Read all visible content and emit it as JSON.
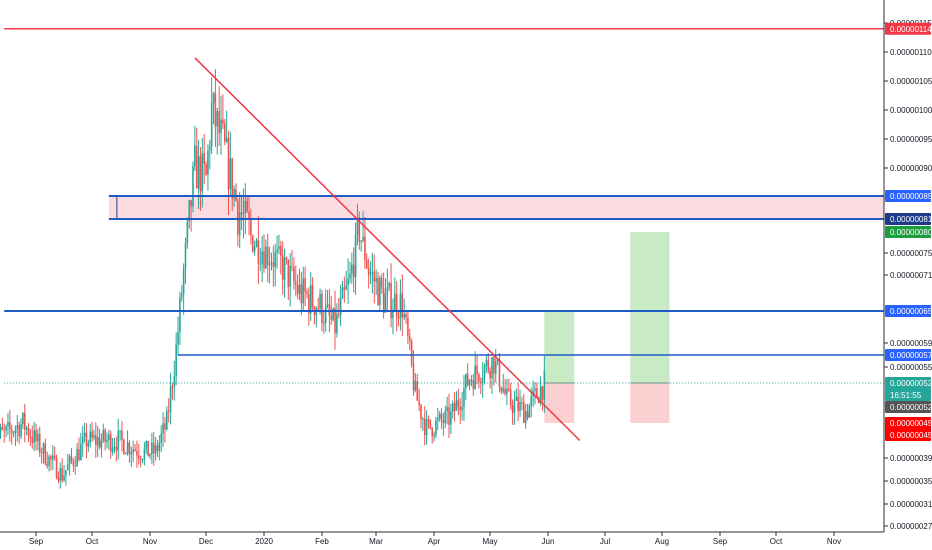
{
  "chart_data": {
    "type": "candlestick",
    "title": "",
    "xlabel": "",
    "ylabel": "",
    "colors": {
      "up": "#26a69a",
      "down": "#ef5350",
      "trendline": "#f23645",
      "hline_red": "#f23645",
      "hline_blue": "#1e5bc6",
      "zone_fill": "#fadbe0",
      "target_zone": "#c8ebc5",
      "stop_zone": "#fcd0d0"
    },
    "y_axis": {
      "position": "right",
      "ylim": [
        2.5e-07,
        1.17e-06
      ],
      "ticks": [
        "0.00000115",
        "0.00000110",
        "0.00000105",
        "0.00000100",
        "0.00000095",
        "0.00000090",
        "0.00000075",
        "0.00000071",
        "0.00000059",
        "0.00000055",
        "0.00000039",
        "0.00000035",
        "0.00000031",
        "0.00000027"
      ]
    },
    "x_axis": {
      "ticks": [
        "Sep",
        "Oct",
        "Nov",
        "Dec",
        "2020",
        "Feb",
        "Mar",
        "Apr",
        "May",
        "Jun",
        "Jul",
        "Aug",
        "Sep",
        "Oct",
        "Nov"
      ]
    },
    "horizontal_lines": [
      {
        "value": 1.14e-06,
        "color": "#f23645",
        "width": 1.5,
        "from_date": "Aug 15"
      },
      {
        "value": 8.5e-07,
        "color": "#1e5bc6",
        "width": 2,
        "from_date": "Oct 10"
      },
      {
        "value": 8.1e-07,
        "color": "#1e5bc6",
        "width": 2,
        "from_date": "Oct 10"
      },
      {
        "value": 6.5e-07,
        "color": "#1e5bc6",
        "width": 2,
        "from_date": "Aug 15"
      },
      {
        "value": 5.7e-07,
        "color": "#1e5bc6",
        "width": 1.5,
        "from_date": "Nov 16"
      },
      {
        "value": 5.2e-07,
        "color": "#26a69a",
        "width": 1,
        "dotted": true,
        "from_date": "Aug 15"
      }
    ],
    "zones": [
      {
        "kind": "resistance",
        "from_date": "Oct 10",
        "to_date": "end",
        "top": 8.5e-07,
        "bottom": 8.1e-07
      }
    ],
    "positions": [
      {
        "from_date": "May 30",
        "to_date": "Jun 15",
        "entry": 5.2e-07,
        "target": 6.5e-07,
        "stop": 4.5e-07
      },
      {
        "from_date": "Jul 15",
        "to_date": "Aug 5",
        "entry": 5.2e-07,
        "target": 8e-07,
        "stop": 4.5e-07
      }
    ],
    "trendline": {
      "from": {
        "date": "Nov 25",
        "value": 1.09e-06
      },
      "to": {
        "date": "Jun 18",
        "value": 4.2e-07
      }
    },
    "price_labels": [
      {
        "text": "0.00000114",
        "value": 1.14e-06,
        "bg": "#f23645",
        "fg": "#ffffff"
      },
      {
        "text": "0.00000085",
        "value": 8.5e-07,
        "bg": "#2962ff",
        "fg": "#ffffff"
      },
      {
        "text": "0.00000081",
        "value": 8.1e-07,
        "bg": "#1e3a8a",
        "fg": "#ffffff"
      },
      {
        "text": "0.00000080",
        "value": 8e-07,
        "bg": "#1b9e3e",
        "fg": "#ffffff"
      },
      {
        "text": "0.00000065",
        "value": 6.5e-07,
        "bg": "#1b9e3e",
        "fg": "#ffffff"
      },
      {
        "text": "0.00000065",
        "value": 6.5e-07,
        "bg": "#2962ff",
        "fg": "#ffffff"
      },
      {
        "text": "0.00000057",
        "value": 5.7e-07,
        "bg": "#2962ff",
        "fg": "#ffffff"
      },
      {
        "text": "0.00000052",
        "value": 5.2e-07,
        "bg": "#26a69a",
        "fg": "#ffffff"
      },
      {
        "text": "16:51:55",
        "value": 5.2e-07,
        "bg": "#26a69a",
        "fg": "#ffffff",
        "stack": 1
      },
      {
        "text": "0.00000052",
        "value": 5.2e-07,
        "bg": "#555555",
        "fg": "#ffffff",
        "stack": 2
      },
      {
        "text": "0.00000051",
        "value": 5.1e-07,
        "bg": "#131722",
        "fg": "#ffffff",
        "stack": 3
      },
      {
        "text": "0.00000045",
        "value": 4.5e-07,
        "bg": "#ff0000",
        "fg": "#ffffff"
      },
      {
        "text": "0.00000045",
        "value": 4.5e-07,
        "bg": "#ff0000",
        "fg": "#ffffff",
        "stack": 1
      }
    ],
    "ohlc_anchor_points": [
      {
        "date": "Aug 15",
        "close": 4.3e-07
      },
      {
        "date": "Aug 25",
        "close": 4.5e-07
      },
      {
        "date": "Sep 5",
        "close": 4e-07
      },
      {
        "date": "Sep 15",
        "close": 3.6e-07
      },
      {
        "date": "Sep 28",
        "close": 4.2e-07
      },
      {
        "date": "Oct 15",
        "close": 4.2e-07
      },
      {
        "date": "Oct 28",
        "close": 4e-07
      },
      {
        "date": "Nov 4",
        "close": 4e-07
      },
      {
        "date": "Nov 10",
        "close": 4.5e-07
      },
      {
        "date": "Nov 15",
        "close": 5.8e-07
      },
      {
        "date": "Nov 20",
        "close": 7.5e-07
      },
      {
        "date": "Nov 25",
        "close": 9e-07
      },
      {
        "date": "Dec 1",
        "close": 8.8e-07
      },
      {
        "date": "Dec 4",
        "close": 1e-06
      },
      {
        "date": "Dec 10",
        "close": 9.4e-07
      },
      {
        "date": "Dec 18",
        "close": 8.3e-07
      },
      {
        "date": "Dec 28",
        "close": 7.7e-07
      },
      {
        "date": "Jan 10",
        "close": 7.3e-07
      },
      {
        "date": "Jan 20",
        "close": 6.8e-07
      },
      {
        "date": "Jan 30",
        "close": 6.6e-07
      },
      {
        "date": "Feb 8",
        "close": 6.2e-07
      },
      {
        "date": "Feb 16",
        "close": 7e-07
      },
      {
        "date": "Feb 21",
        "close": 8e-07
      },
      {
        "date": "Feb 26",
        "close": 7.2e-07
      },
      {
        "date": "Mar 5",
        "close": 6.7e-07
      },
      {
        "date": "Mar 15",
        "close": 6.6e-07
      },
      {
        "date": "Mar 22",
        "close": 5e-07
      },
      {
        "date": "Mar 28",
        "close": 4.4e-07
      },
      {
        "date": "Apr 10",
        "close": 4.6e-07
      },
      {
        "date": "Apr 20",
        "close": 5.3e-07
      },
      {
        "date": "May 3",
        "close": 5.6e-07
      },
      {
        "date": "May 10",
        "close": 4.9e-07
      },
      {
        "date": "May 20",
        "close": 4.7e-07
      },
      {
        "date": "May 30",
        "close": 5.2e-07
      }
    ]
  }
}
